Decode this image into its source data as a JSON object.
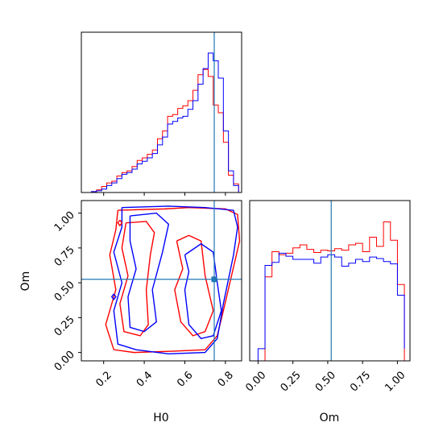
{
  "chart_data": {
    "type": "corner",
    "parameters": [
      "H0",
      "Om"
    ],
    "truth": {
      "H0": 0.745,
      "Om": 0.525
    },
    "series_colors": [
      "#ff0000",
      "#0000ff"
    ],
    "truth_color": "#1f77b4",
    "axes": {
      "H0": {
        "label": "H0",
        "range": [
          0.09,
          0.88
        ],
        "ticks": [
          0.2,
          0.4,
          0.6,
          0.8
        ],
        "tick_labels": [
          "0.2",
          "0.4",
          "0.6",
          "0.8"
        ]
      },
      "Om": {
        "label": "Om",
        "range": [
          -0.06,
          1.09
        ],
        "ticks": [
          0.0,
          0.25,
          0.5,
          0.75,
          1.0
        ],
        "tick_labels": [
          "0.00",
          "0.25",
          "0.50",
          "0.75",
          "1.00"
        ]
      }
    },
    "hist_H0": {
      "edges": [
        0.09,
        0.115,
        0.14,
        0.165,
        0.19,
        0.215,
        0.24,
        0.265,
        0.29,
        0.315,
        0.34,
        0.365,
        0.39,
        0.415,
        0.44,
        0.465,
        0.49,
        0.515,
        0.54,
        0.565,
        0.59,
        0.615,
        0.64,
        0.665,
        0.69,
        0.715,
        0.74,
        0.765,
        0.79,
        0.815,
        0.84,
        0.865
      ],
      "ymax": 185,
      "series": [
        {
          "values": [
            0,
            0,
            1,
            3,
            7,
            11,
            13,
            19,
            23,
            25,
            30,
            37,
            40,
            44,
            49,
            62,
            71,
            88,
            90,
            97,
            100,
            106,
            118,
            136,
            142,
            134,
            101,
            92,
            58,
            20,
            10
          ]
        },
        {
          "values": [
            0,
            0,
            1,
            2,
            4,
            8,
            11,
            16,
            21,
            23,
            27,
            33,
            36,
            40,
            45,
            55,
            64,
            79,
            82,
            86,
            88,
            96,
            106,
            125,
            143,
            161,
            152,
            132,
            71,
            25,
            8
          ]
        }
      ]
    },
    "hist_Om": {
      "edges": [
        -0.06,
        0.0,
        0.05,
        0.1,
        0.15,
        0.2,
        0.25,
        0.3,
        0.35,
        0.4,
        0.45,
        0.5,
        0.55,
        0.6,
        0.65,
        0.7,
        0.75,
        0.8,
        0.85,
        0.9,
        0.95,
        1.0,
        1.05
      ],
      "ymax": 210,
      "series": [
        {
          "values": [
            0,
            0,
            110,
            143,
            139,
            141,
            148,
            152,
            146,
            142,
            145,
            144,
            147,
            145,
            152,
            154,
            143,
            162,
            150,
            182,
            158,
            100,
            0
          ]
        },
        {
          "values": [
            0,
            16,
            125,
            129,
            141,
            137,
            133,
            133,
            133,
            128,
            136,
            139,
            136,
            124,
            128,
            133,
            130,
            136,
            134,
            130,
            127,
            86,
            16
          ]
        }
      ]
    },
    "contours": [
      {
        "series": 0,
        "level": "inner",
        "points": [
          [
            0.31,
            0.93
          ],
          [
            0.41,
            0.94
          ],
          [
            0.45,
            0.86
          ],
          [
            0.43,
            0.7
          ],
          [
            0.41,
            0.45
          ],
          [
            0.42,
            0.2
          ],
          [
            0.38,
            0.12
          ],
          [
            0.3,
            0.15
          ],
          [
            0.28,
            0.35
          ],
          [
            0.32,
            0.55
          ],
          [
            0.29,
            0.75
          ],
          [
            0.31,
            0.93
          ]
        ]
      },
      {
        "series": 0,
        "level": "outer",
        "points": [
          [
            0.27,
            1.02
          ],
          [
            0.5,
            1.03
          ],
          [
            0.62,
            1.04
          ],
          [
            0.8,
            1.03
          ],
          [
            0.86,
            0.99
          ],
          [
            0.87,
            0.8
          ],
          [
            0.83,
            0.55
          ],
          [
            0.79,
            0.3
          ],
          [
            0.76,
            0.12
          ],
          [
            0.7,
            0.02
          ],
          [
            0.55,
            0.01
          ],
          [
            0.35,
            0.0
          ],
          [
            0.25,
            0.02
          ],
          [
            0.21,
            0.2
          ],
          [
            0.26,
            0.45
          ],
          [
            0.23,
            0.7
          ],
          [
            0.26,
            0.88
          ],
          [
            0.27,
            1.02
          ]
        ]
      },
      {
        "series": 0,
        "level": "inner",
        "points": [
          [
            0.56,
            0.8
          ],
          [
            0.62,
            0.84
          ],
          [
            0.68,
            0.8
          ],
          [
            0.7,
            0.55
          ],
          [
            0.74,
            0.3
          ],
          [
            0.7,
            0.15
          ],
          [
            0.64,
            0.12
          ],
          [
            0.58,
            0.22
          ],
          [
            0.55,
            0.45
          ],
          [
            0.59,
            0.6
          ],
          [
            0.56,
            0.8
          ]
        ]
      },
      {
        "series": 1,
        "level": "inner",
        "points": [
          [
            0.33,
            0.98
          ],
          [
            0.46,
            1.0
          ],
          [
            0.52,
            0.92
          ],
          [
            0.49,
            0.72
          ],
          [
            0.44,
            0.45
          ],
          [
            0.46,
            0.22
          ],
          [
            0.4,
            0.15
          ],
          [
            0.33,
            0.18
          ],
          [
            0.32,
            0.4
          ],
          [
            0.36,
            0.6
          ],
          [
            0.33,
            0.8
          ],
          [
            0.33,
            0.98
          ]
        ]
      },
      {
        "series": 1,
        "level": "outer",
        "points": [
          [
            0.29,
            1.04
          ],
          [
            0.52,
            1.05
          ],
          [
            0.7,
            1.04
          ],
          [
            0.84,
            1.02
          ],
          [
            0.86,
            0.9
          ],
          [
            0.84,
            0.7
          ],
          [
            0.79,
            0.35
          ],
          [
            0.76,
            0.1
          ],
          [
            0.7,
            0.0
          ],
          [
            0.52,
            -0.01
          ],
          [
            0.36,
            0.02
          ],
          [
            0.27,
            0.06
          ],
          [
            0.25,
            0.3
          ],
          [
            0.29,
            0.5
          ],
          [
            0.25,
            0.72
          ],
          [
            0.29,
            0.9
          ],
          [
            0.29,
            1.04
          ]
        ]
      },
      {
        "series": 1,
        "level": "inner",
        "points": [
          [
            0.6,
            0.7
          ],
          [
            0.68,
            0.78
          ],
          [
            0.74,
            0.72
          ],
          [
            0.76,
            0.5
          ],
          [
            0.78,
            0.3
          ],
          [
            0.74,
            0.12
          ],
          [
            0.68,
            0.1
          ],
          [
            0.62,
            0.2
          ],
          [
            0.6,
            0.45
          ],
          [
            0.62,
            0.58
          ],
          [
            0.6,
            0.7
          ]
        ]
      },
      {
        "series": 0,
        "level": "blob",
        "points": [
          [
            0.28,
            0.95
          ],
          [
            0.29,
            0.93
          ],
          [
            0.28,
            0.91
          ],
          [
            0.27,
            0.93
          ],
          [
            0.28,
            0.95
          ]
        ]
      },
      {
        "series": 1,
        "level": "blob",
        "points": [
          [
            0.25,
            0.42
          ],
          [
            0.26,
            0.4
          ],
          [
            0.25,
            0.38
          ],
          [
            0.24,
            0.4
          ],
          [
            0.25,
            0.42
          ]
        ]
      }
    ]
  }
}
